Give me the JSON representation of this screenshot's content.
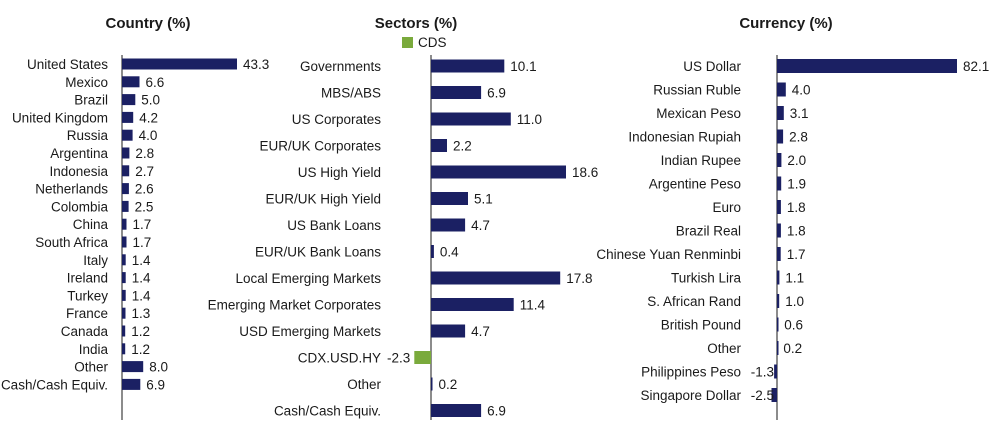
{
  "colors": {
    "bar": "#1b2063",
    "cds": "#7aaa3c",
    "axis": "#1a1a1a"
  },
  "chart_data": [
    {
      "type": "bar",
      "orientation": "horizontal",
      "title": "Country (%)",
      "categories": [
        "United States",
        "Mexico",
        "Brazil",
        "United Kingdom",
        "Russia",
        "Argentina",
        "Indonesia",
        "Netherlands",
        "Colombia",
        "China",
        "South Africa",
        "Italy",
        "Ireland",
        "Turkey",
        "France",
        "Canada",
        "India",
        "Other",
        "Cash/Cash Equiv."
      ],
      "values": [
        43.3,
        6.6,
        5.0,
        4.2,
        4.0,
        2.8,
        2.7,
        2.6,
        2.5,
        1.7,
        1.7,
        1.4,
        1.4,
        1.4,
        1.3,
        1.2,
        1.2,
        8.0,
        6.9
      ],
      "labels": [
        "43.3",
        "6.6",
        "5.0",
        "4.2",
        "4.0",
        "2.8",
        "2.7",
        "2.6",
        "2.5",
        "1.7",
        "1.7",
        "1.4",
        "1.4",
        "1.4",
        "1.3",
        "1.2",
        "1.2",
        "8.0",
        "6.9"
      ]
    },
    {
      "type": "bar",
      "orientation": "horizontal",
      "title": "Sectors (%)",
      "legend": [
        "CDS"
      ],
      "categories": [
        "Governments",
        "MBS/ABS",
        "US Corporates",
        "EUR/UK Corporates",
        "US High Yield",
        "EUR/UK High Yield",
        "US Bank Loans",
        "EUR/UK Bank Loans",
        "Local Emerging Markets",
        "Emerging Market Corporates",
        "USD Emerging Markets",
        "CDX.USD.HY",
        "Other",
        "Cash/Cash Equiv."
      ],
      "values": [
        10.1,
        6.9,
        11.0,
        2.2,
        18.6,
        5.1,
        4.7,
        0.4,
        17.8,
        11.4,
        4.7,
        -2.3,
        0.2,
        6.9
      ],
      "labels": [
        "10.1",
        "6.9",
        "11.0",
        "2.2",
        "18.6",
        "5.1",
        "4.7",
        "0.4",
        "17.8",
        "11.4",
        "4.7",
        "-2.3",
        "0.2",
        "6.9"
      ],
      "cds_category": "CDX.USD.HY"
    },
    {
      "type": "bar",
      "orientation": "horizontal",
      "title": "Currency (%)",
      "categories": [
        "US Dollar",
        "Russian Ruble",
        "Mexican Peso",
        "Indonesian Rupiah",
        "Indian Rupee",
        "Argentine Peso",
        "Euro",
        "Brazil Real",
        "Chinese Yuan Renminbi",
        "Turkish Lira",
        "S. African Rand",
        "British Pound",
        "Other",
        "Philippines Peso",
        "Singapore Dollar"
      ],
      "values": [
        82.1,
        4.0,
        3.1,
        2.8,
        2.0,
        1.9,
        1.8,
        1.8,
        1.7,
        1.1,
        1.0,
        0.6,
        0.2,
        -1.3,
        -2.5
      ],
      "labels": [
        "82.1",
        "4.0",
        "3.1",
        "2.8",
        "2.0",
        "1.9",
        "1.8",
        "1.8",
        "1.7",
        "1.1",
        "1.0",
        "0.6",
        "0.2",
        "-1.3",
        "-2.5"
      ]
    }
  ]
}
